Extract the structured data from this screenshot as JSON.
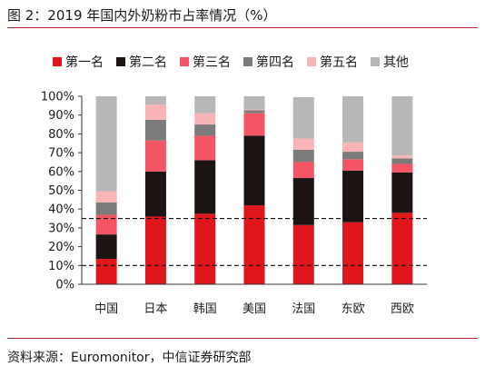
{
  "figure": {
    "title": "图 2：2019 年国内外奶粉市占率情况（%）",
    "source": "资料来源：Euromonitor，中信证券研究部"
  },
  "chart_data": {
    "type": "bar",
    "stacked": true,
    "categories": [
      "中国",
      "日本",
      "韩国",
      "美国",
      "法国",
      "东欧",
      "西欧"
    ],
    "series": [
      {
        "name": "第一名",
        "color": "#e0161d",
        "values": [
          13.5,
          36,
          37.5,
          42,
          31.5,
          33,
          38
        ]
      },
      {
        "name": "第二名",
        "color": "#1c1412",
        "values": [
          13,
          24,
          28.5,
          37,
          25,
          27.5,
          21.5
        ]
      },
      {
        "name": "第三名",
        "color": "#f45565",
        "values": [
          10.5,
          16.5,
          13,
          12,
          8.5,
          6,
          4.5
        ]
      },
      {
        "name": "第四名",
        "color": "#7b7b7b",
        "values": [
          6.5,
          11,
          6,
          1.5,
          6.5,
          4,
          3
        ]
      },
      {
        "name": "第五名",
        "color": "#f9b4b8",
        "values": [
          6,
          8,
          6,
          0.5,
          6,
          5,
          1.5
        ]
      },
      {
        "name": "其他",
        "color": "#b7b7b7",
        "values": [
          50.5,
          4.5,
          9,
          7,
          22,
          24.5,
          31.5
        ]
      }
    ],
    "yticks": [
      "0%",
      "10%",
      "20%",
      "30%",
      "40%",
      "50%",
      "60%",
      "70%",
      "80%",
      "90%",
      "100%"
    ],
    "ylim": [
      0,
      100
    ],
    "reference_lines": [
      10,
      35
    ],
    "grid": false,
    "legend_position": "top"
  }
}
